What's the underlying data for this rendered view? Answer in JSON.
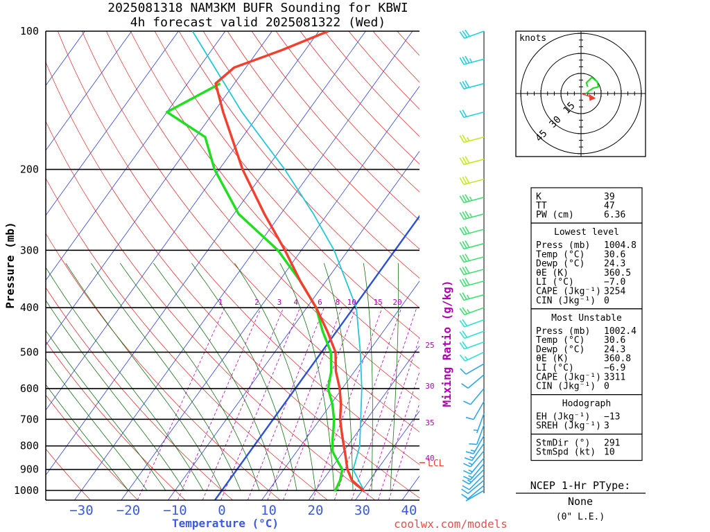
{
  "title_line1": "2025081318 NAM3KM BUFR Sounding for KBWI",
  "title_line2": "4h forecast valid 2025081322 (Wed)",
  "website": "coolwx.com/models",
  "colors": {
    "temperature": "#f04030",
    "dewpoint": "#22dd22",
    "parcel": "#22c8d8",
    "isotherm": "#2b3fd8",
    "dry_adiabat": "#e02020",
    "moist_adiabat": "#137013",
    "mixing_ratio": "#b000b0",
    "zero_isotherm": "#2b50d8",
    "x_axis_text": "#3b5bdb"
  },
  "chart_data": {
    "type": "line",
    "title": "2025081318 NAM3KM BUFR Sounding for KBWI",
    "subtitle": "4h forecast valid 2025081322 (Wed)",
    "xlabel": "Temperature (°C)",
    "ylabel": "Pressure (mb)",
    "y_scale": "log",
    "xlim": [
      -40,
      42
    ],
    "ylim": [
      1050,
      100
    ],
    "x_ticks": [
      "−30",
      "−20",
      "−10",
      "0",
      "10",
      "20",
      "30",
      "40"
    ],
    "x_tick_values": [
      -30,
      -20,
      -10,
      0,
      10,
      20,
      30,
      40
    ],
    "y_ticks": [
      "100",
      "200",
      "300",
      "400",
      "500",
      "600",
      "700",
      "800",
      "900",
      "1000"
    ],
    "y_tick_values": [
      100,
      200,
      300,
      400,
      500,
      600,
      700,
      800,
      900,
      1000
    ],
    "mixing_ratio_label": "Mixing Ratio (g/kg)",
    "mixing_ratios": [
      "1",
      "2",
      "3",
      "4",
      "6",
      "8",
      "10",
      "15",
      "20",
      "25",
      "30",
      "35",
      "40"
    ],
    "mixing_ratio_values": [
      1,
      2,
      3,
      4,
      6,
      8,
      10,
      15,
      20,
      25,
      30,
      35,
      40
    ],
    "lcl_label": "LCL",
    "lcl_pressure": 870,
    "series": [
      {
        "name": "Temperature",
        "pressure": [
          1004.8,
          950,
          900,
          850,
          800,
          750,
          700,
          650,
          600,
          550,
          500,
          450,
          400,
          350,
          300,
          250,
          200,
          150,
          130,
          120,
          110,
          100
        ],
        "temp": [
          30.6,
          26.2,
          23.6,
          21.5,
          19.2,
          16.8,
          14.3,
          12.2,
          9.5,
          6.0,
          3.0,
          -2.0,
          -8.0,
          -15.5,
          -23.5,
          -33.5,
          -45.0,
          -58.0,
          -64.0,
          -62.5,
          -55.0,
          -48.0
        ]
      },
      {
        "name": "Dewpoint",
        "pressure": [
          1004.8,
          950,
          900,
          860,
          820,
          780,
          730,
          700,
          650,
          600,
          550,
          500,
          450,
          400,
          350,
          300,
          250,
          200,
          170,
          150,
          130
        ],
        "temp": [
          24.3,
          23.7,
          22.5,
          20.0,
          17.5,
          16.0,
          14.2,
          13.0,
          10.4,
          7.0,
          5.0,
          2.0,
          -3.0,
          -8.0,
          -15.5,
          -25.0,
          -39.0,
          -51.0,
          -58.0,
          -70.0,
          -63.0
        ]
      },
      {
        "name": "Parcel",
        "pressure": [
          1004.8,
          900,
          870,
          800,
          700,
          600,
          500,
          400,
          300,
          250,
          200,
          150,
          100
        ],
        "temp": [
          30.6,
          24.8,
          24.2,
          22.6,
          18.7,
          14.2,
          8.3,
          0.6,
          -13.0,
          -23.0,
          -36.0,
          -54.0,
          -77.0
        ]
      }
    ]
  },
  "hodograph": {
    "units_label": "knots",
    "ring_labels": [
      "15",
      "30",
      "45"
    ],
    "ring_values": [
      15,
      30,
      45
    ],
    "trace_u": [
      4,
      6,
      9,
      13,
      12,
      8,
      6,
      4,
      5
    ],
    "trace_v": [
      0,
      2,
      4,
      5,
      9,
      12,
      10,
      8,
      5
    ],
    "storm_u": 9,
    "storm_v": -3
  },
  "wind_barbs": [
    {
      "p": 100,
      "dir": 250,
      "spd": 30
    },
    {
      "p": 115,
      "dir": 255,
      "spd": 35
    },
    {
      "p": 130,
      "dir": 255,
      "spd": 30
    },
    {
      "p": 150,
      "dir": 255,
      "spd": 20
    },
    {
      "p": 170,
      "dir": 255,
      "spd": 25
    },
    {
      "p": 190,
      "dir": 255,
      "spd": 30
    },
    {
      "p": 210,
      "dir": 255,
      "spd": 30
    },
    {
      "p": 230,
      "dir": 255,
      "spd": 35
    },
    {
      "p": 250,
      "dir": 255,
      "spd": 35
    },
    {
      "p": 270,
      "dir": 255,
      "spd": 30
    },
    {
      "p": 290,
      "dir": 255,
      "spd": 30
    },
    {
      "p": 310,
      "dir": 255,
      "spd": 30
    },
    {
      "p": 330,
      "dir": 255,
      "spd": 30
    },
    {
      "p": 350,
      "dir": 255,
      "spd": 30
    },
    {
      "p": 375,
      "dir": 255,
      "spd": 25
    },
    {
      "p": 400,
      "dir": 250,
      "spd": 25
    },
    {
      "p": 425,
      "dir": 250,
      "spd": 20
    },
    {
      "p": 450,
      "dir": 250,
      "spd": 20
    },
    {
      "p": 475,
      "dir": 250,
      "spd": 20
    },
    {
      "p": 500,
      "dir": 245,
      "spd": 15
    },
    {
      "p": 530,
      "dir": 240,
      "spd": 10
    },
    {
      "p": 560,
      "dir": 230,
      "spd": 10
    },
    {
      "p": 600,
      "dir": 220,
      "spd": 10
    },
    {
      "p": 640,
      "dir": 210,
      "spd": 10
    },
    {
      "p": 680,
      "dir": 200,
      "spd": 5
    },
    {
      "p": 720,
      "dir": 200,
      "spd": 10
    },
    {
      "p": 760,
      "dir": 210,
      "spd": 15
    },
    {
      "p": 790,
      "dir": 215,
      "spd": 15
    },
    {
      "p": 820,
      "dir": 220,
      "spd": 15
    },
    {
      "p": 850,
      "dir": 220,
      "spd": 15
    },
    {
      "p": 875,
      "dir": 220,
      "spd": 15
    },
    {
      "p": 900,
      "dir": 225,
      "spd": 15
    },
    {
      "p": 925,
      "dir": 225,
      "spd": 10
    },
    {
      "p": 950,
      "dir": 230,
      "spd": 10
    },
    {
      "p": 975,
      "dir": 230,
      "spd": 10
    },
    {
      "p": 1000,
      "dir": 240,
      "spd": 5
    }
  ],
  "indices": {
    "top": [
      {
        "label": "K",
        "value": "39"
      },
      {
        "label": "TT",
        "value": "47"
      },
      {
        "label": "PW (cm)",
        "value": "6.36"
      }
    ],
    "lowest_title": "Lowest level",
    "lowest": [
      {
        "label": "Press (mb)",
        "value": "1004.8"
      },
      {
        "label": "Temp (°C)",
        "value": "30.6"
      },
      {
        "label": "Dewp (°C)",
        "value": "24.3"
      },
      {
        "label": "θE (K)",
        "value": "360.5"
      },
      {
        "label": "LI (°C)",
        "value": "−7.0"
      },
      {
        "label": "CAPE (Jkg⁻¹)",
        "value": "3254"
      },
      {
        "label": "CIN (Jkg⁻¹)",
        "value": "0"
      }
    ],
    "mu_title": "Most Unstable",
    "mu": [
      {
        "label": "Press (mb)",
        "value": "1002.4"
      },
      {
        "label": "Temp (°C)",
        "value": "30.6"
      },
      {
        "label": "Dewp (°C)",
        "value": "24.3"
      },
      {
        "label": "θE (K)",
        "value": "360.8"
      },
      {
        "label": "LI (°C)",
        "value": "−6.9"
      },
      {
        "label": "CAPE (Jkg⁻¹)",
        "value": "3311"
      },
      {
        "label": "CIN (Jkg⁻¹)",
        "value": "0"
      }
    ],
    "hodo_title": "Hodograph",
    "hodo": [
      {
        "label": "EH (Jkg⁻¹)",
        "value": "−13"
      },
      {
        "label": "SREH (Jkg⁻¹)",
        "value": "3"
      }
    ],
    "storm": [
      {
        "label": "StmDir (°)",
        "value": "291"
      },
      {
        "label": "StmSpd (kt)",
        "value": "10"
      }
    ]
  },
  "ptype": {
    "title": "NCEP 1-Hr PType:",
    "value": "None",
    "accum": "(0\" L.E.)"
  }
}
